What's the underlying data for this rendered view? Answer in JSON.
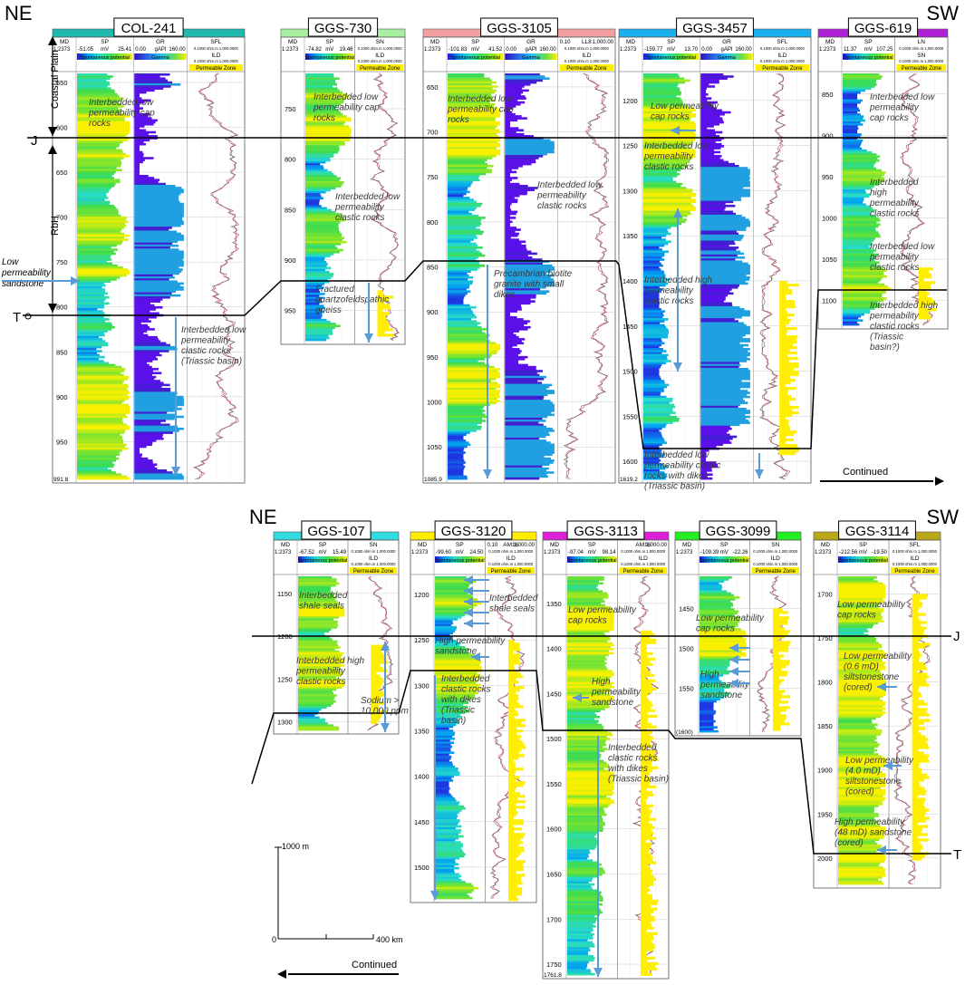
{
  "colors": {
    "line": "#000000",
    "arrow": "#5b9bd5",
    "permeable": "#ffee00",
    "grid": "#c8c8c8"
  },
  "top_section": {
    "dir_left": "NE",
    "dir_right": "SW",
    "continued": "Continued",
    "axis_labels": [
      "Coastal Plain",
      "RbH"
    ],
    "markers": [
      {
        "label": "J"
      },
      {
        "label": "T"
      }
    ],
    "side_note": "Low permeability sandstone",
    "wells": [
      {
        "id": "COL-241",
        "header_color": "#1fb8ad",
        "scale": "1:2373",
        "md": "MD",
        "t1": "SP",
        "t1_range": [
          "-51.05",
          "mV",
          "25.41"
        ],
        "t1_legend": "Spontaneous potential",
        "t2": "GR",
        "t2_range": [
          "0.00",
          "gAPI",
          "160.00"
        ],
        "t2_legend": "Gamma",
        "t3": "SFL",
        "t3b": "ILD",
        "t3_range": "0.1000 ohm.m 1,000.0000",
        "permeable_label": "Permeable Zone",
        "depths": [
          550,
          600,
          650,
          700,
          750,
          800,
          850,
          900,
          950
        ],
        "depth_min": 540,
        "depth_max": 992,
        "bottom_label": "991.8",
        "notes": [
          "Interbedded low permeability cap rocks",
          "Interbedded low permeability clastic rocks (Triassic basin)"
        ]
      },
      {
        "id": "GGS-730",
        "header_color": "#a8f0a0",
        "scale": "1:2373",
        "md": "MD",
        "t1": "SP",
        "t1_range": [
          "-74.82",
          "mV",
          "19.46"
        ],
        "t1_legend": "Spontaneous potential",
        "t3": "SN",
        "t3b": "ILD",
        "t3_range": "0.1000 ohm.m 1,000.0000",
        "permeable_label": "Permeable Zone",
        "depths": [
          750,
          800,
          850,
          900,
          950
        ],
        "depth_min": 715,
        "depth_max": 980,
        "bottom_label": "",
        "notes": [
          "Interbedded low permeability cap rocks",
          "Interbedded low permeability clastic rocks",
          "Fractured quartzofeldspathic gneiss"
        ]
      },
      {
        "id": "GGS-3105",
        "header_color": "#f4a0a0",
        "scale": "1:2373",
        "md": "MD",
        "t1": "SP",
        "t1_range": [
          "-101.83",
          "mV",
          "41.52"
        ],
        "t1_legend": "Spontaneous potential",
        "t2": "GR",
        "t2_range": [
          "0.00",
          "gAPI",
          "160.00"
        ],
        "t2_legend": "Gamma",
        "t3": "LL8",
        "t3b": "ILD",
        "t3_range": "0.1000 ohm.m 1,000.0000",
        "t3_pre": "0.10",
        "t3_post": "1,000.00",
        "permeable_label": "Permeable Zone",
        "depths": [
          650,
          700,
          750,
          800,
          850,
          900,
          950,
          1000,
          1050
        ],
        "depth_min": 635,
        "depth_max": 1086,
        "bottom_label": "1085.9",
        "notes": [
          "Interbedded low permeability cap rocks",
          "Interbedded low permeability clastic rocks",
          "Precambrian biotite granite with small dikes"
        ]
      },
      {
        "id": "GGS-3457",
        "header_color": "#1ab0ee",
        "scale": "1:2373",
        "md": "MD",
        "t1": "SP",
        "t1_range": [
          "-159.77",
          "mV",
          "13.70"
        ],
        "t1_legend": "Spontaneous potential",
        "t2": "GR",
        "t2_range": [
          "0.00",
          "gAPI",
          "160.00"
        ],
        "t2_legend": "Gamma",
        "t3": "SFL",
        "t3b": "ILD",
        "t3_range": "0.1000 ohm.m 1,000.0000",
        "permeable_label": "Permeable Zone",
        "depths": [
          1200,
          1250,
          1300,
          1350,
          1400,
          1450,
          1500,
          1550,
          1600
        ],
        "depth_min": 1170,
        "depth_max": 1620,
        "bottom_label": "1619.2",
        "notes": [
          "Low permeability cap rocks",
          "Interbedded low permeability clastic rocks",
          "Interbedded high permeability clastic rocks",
          "Interbedded low permeability clastic rocks with dikes (Triassic basin)"
        ]
      },
      {
        "id": "GGS-619",
        "header_color": "#b020d8",
        "scale": "1:2373",
        "md": "MD",
        "t1": "SP",
        "t1_range": [
          "11.37",
          "mV",
          "107.25"
        ],
        "t1_legend": "Spontaneous potential",
        "t3": "LN",
        "t3b": "SN",
        "t3_range": "0.1000 ohm.m 1,000.0000",
        "permeable_label": "Permeable Zone",
        "depths": [
          850,
          900,
          950,
          1000,
          1050,
          1100
        ],
        "depth_min": 825,
        "depth_max": 1130,
        "bottom_label": "",
        "notes": [
          "Interbedded low permeability cap rocks",
          "Interbedded high permeability clastic rocks",
          "Interbedded low permeability clastic rocks",
          "Interbedded high permeability clastic rocks (Triassic basin?)"
        ]
      }
    ]
  },
  "bottom_section": {
    "dir_left": "NE",
    "dir_right": "SW",
    "continued": "Continued",
    "markers": [
      {
        "label": "J"
      },
      {
        "label": "T"
      }
    ],
    "scale_bar": {
      "vertical": "1000 m",
      "zero": "0",
      "horizontal": "400 km"
    },
    "wells": [
      {
        "id": "GGS-107",
        "header_color": "#30dce0",
        "scale": "1:2373",
        "md": "MD",
        "t1": "SP",
        "t1_range": [
          "-67.52",
          "mV",
          "15.49"
        ],
        "t1_legend": "Spontaneous potential",
        "t3": "SN",
        "t3b": "ILD",
        "t3_range": "0.1000 ohm.m 1,000.0000",
        "permeable_label": "Permeable Zone",
        "depths": [
          1150,
          1200,
          1250,
          1300
        ],
        "depth_min": 1130,
        "depth_max": 1310,
        "bottom_label": "",
        "notes": [
          "Interbedded shale seals",
          "Interbedded high permeability clastic rocks",
          "Sodium > 10,000 ppm"
        ]
      },
      {
        "id": "GGS-3120",
        "header_color": "#ffee00",
        "scale": "1:2373",
        "md": "MD",
        "t1": "SP",
        "t1_range": [
          "-99.60",
          "mV",
          "24.50"
        ],
        "t1_legend": "Spontaneous potential",
        "t3": "AM16",
        "t3b": "ILD",
        "t3_range": "0.1000 ohm.m 1,000.0000",
        "t3_pre": "0.10",
        "t3_post": "1,000.00",
        "permeable_label": "Permeable Zone",
        "depths": [
          1200,
          1250,
          1300,
          1350,
          1400,
          1450,
          1500
        ],
        "depth_min": 1180,
        "depth_max": 1535,
        "bottom_label": "",
        "notes": [
          "Interbedded shale seals",
          "High permeability sandstone",
          "Interbedded clastic rocks with dikes (Triassic basin)"
        ]
      },
      {
        "id": "GGS-3113",
        "header_color": "#e020d8",
        "scale": "1:2373",
        "md": "MD",
        "t1": "SP",
        "t1_range": [
          "-97.04",
          "mV",
          "98.14"
        ],
        "t1_legend": "Spontaneous potential",
        "t3": "AM16",
        "t3b": "ILD",
        "t3_range": "0.1000 ohm.m 1,000.0000",
        "t3_post": "1,000.00",
        "permeable_label": "Permeable Zone",
        "depths": [
          1350,
          1400,
          1450,
          1500,
          1550,
          1600,
          1650,
          1700,
          1750
        ],
        "depth_min": 1320,
        "depth_max": 1762,
        "bottom_label": "1761.8",
        "notes": [
          "Low permeability cap rocks",
          "High permeability sandstone",
          "Interbedded clastic rocks with dikes (Triassic basin)"
        ]
      },
      {
        "id": "GGS-3099",
        "header_color": "#22ee22",
        "scale": "1:2373",
        "md": "MD",
        "t1": "SP",
        "t1_range": [
          "-109.39",
          "mV",
          "-22.26"
        ],
        "t1_legend": "Spontaneous potential",
        "t3": "SN",
        "t3b": "ILD",
        "t3_range": "0.1000 ohm.m 1,000.0000",
        "permeable_label": "Permeable Zone",
        "depths": [
          1450,
          1500,
          1550
        ],
        "depth_min": 1410,
        "depth_max": 1605,
        "bottom_label": "(1600)",
        "notes": [
          "Low permeability cap rocks",
          "High permeability sandstone"
        ]
      },
      {
        "id": "GGS-3114",
        "header_color": "#b8a818",
        "scale": "1:2373",
        "md": "MD",
        "t1": "SP",
        "t1_range": [
          "-212.56",
          "mV",
          "-19.50"
        ],
        "t1_legend": "Spontaneous potential",
        "t3": "SFL",
        "t3b": "ILD",
        "t3_range": "0.1000 ohm.m 1,000.0000",
        "permeable_label": "Permeable Zone",
        "depths": [
          1700,
          1750,
          1800,
          1850,
          1900,
          1950,
          2000
        ],
        "depth_min": 1680,
        "depth_max": 2030,
        "bottom_label": "",
        "notes": [
          "Low permeability cap rocks",
          "Low permeability (0.6 mD) siltstonestone (cored)",
          "Low permeability (4.0 mD) siltstonestone (cored)",
          "High permeability (48 mD) sandstone (cored)"
        ]
      }
    ]
  }
}
